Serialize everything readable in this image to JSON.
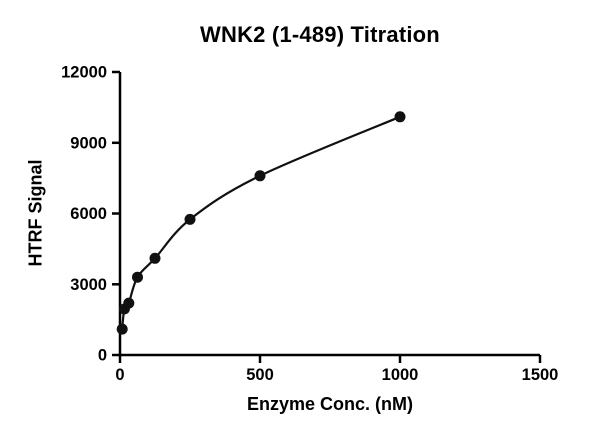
{
  "chart_data": {
    "type": "scatter",
    "title": "WNK2 (1-489) Titration",
    "xlabel": "Enzyme Conc. (nM)",
    "ylabel": "HTRF Signal",
    "xlim": [
      0,
      1500
    ],
    "ylim": [
      0,
      12000
    ],
    "xticks": [
      0,
      500,
      1000,
      1500
    ],
    "yticks": [
      0,
      3000,
      6000,
      9000,
      12000
    ],
    "grid": false,
    "legend": "none",
    "axis_color": "#000000",
    "marker_color": "#111111",
    "line_color": "#111111",
    "points": [
      {
        "x": 7.8,
        "y": 1100
      },
      {
        "x": 15.6,
        "y": 1950
      },
      {
        "x": 31.25,
        "y": 2200
      },
      {
        "x": 62.5,
        "y": 3300
      },
      {
        "x": 125,
        "y": 4100
      },
      {
        "x": 250,
        "y": 5750
      },
      {
        "x": 500,
        "y": 7600
      },
      {
        "x": 1000,
        "y": 10100
      }
    ],
    "curve_note": "smooth saturation-binding fit line through the data points"
  }
}
